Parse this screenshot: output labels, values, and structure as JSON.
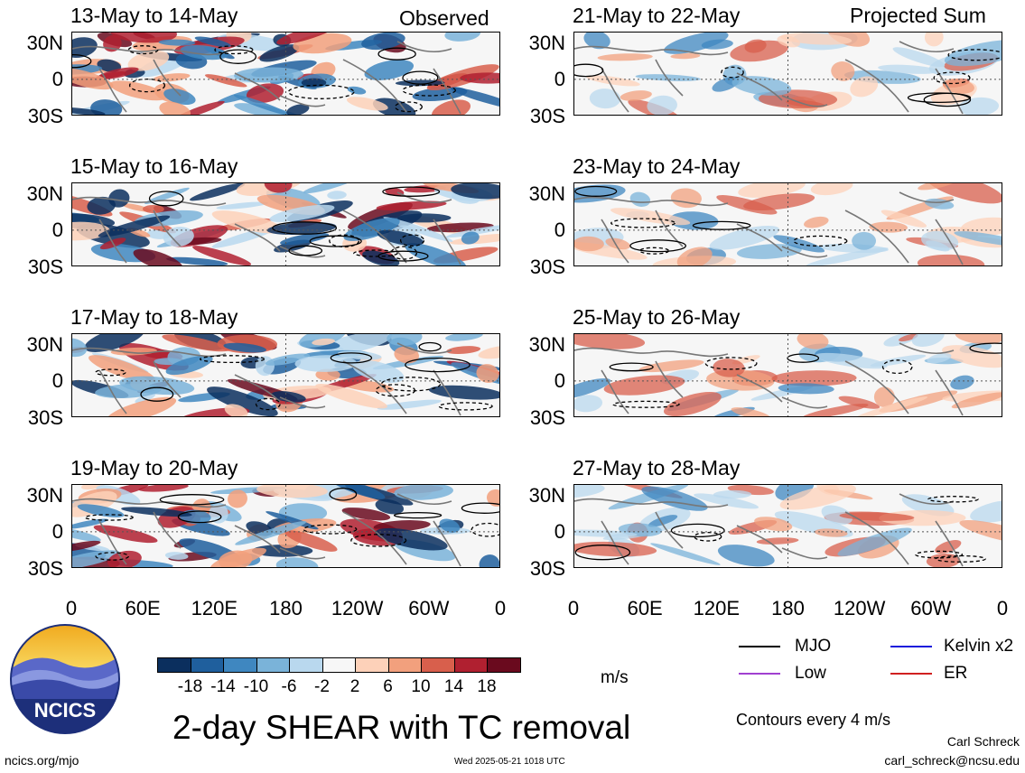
{
  "header": {
    "left_label": "Observed",
    "right_label": "Projected Sum"
  },
  "panels_left": [
    {
      "title": "13-May to 14-May"
    },
    {
      "title": "15-May to 16-May"
    },
    {
      "title": "17-May to 18-May"
    },
    {
      "title": "19-May to 20-May"
    }
  ],
  "panels_right": [
    {
      "title": "21-May to 22-May"
    },
    {
      "title": "23-May to 24-May"
    },
    {
      "title": "25-May to 26-May"
    },
    {
      "title": "27-May to 28-May"
    }
  ],
  "lat_labels": [
    "30N",
    "0",
    "30S"
  ],
  "lon_labels": [
    "0",
    "60E",
    "120E",
    "180",
    "120W",
    "60W",
    "0"
  ],
  "colorbar": {
    "ticks": [
      "-18",
      "-14",
      "-10",
      "-6",
      "-2",
      "2",
      "6",
      "10",
      "14",
      "18"
    ],
    "colors": [
      "#0b2f5e",
      "#1f5f9d",
      "#3f87c0",
      "#7ab3d9",
      "#b9d8ee",
      "#f7f7f7",
      "#fdd1b9",
      "#f2a07d",
      "#d85f4c",
      "#b02030",
      "#6a0a1e"
    ],
    "units": "m/s"
  },
  "legend": [
    {
      "label": "MJO",
      "color": "#000000"
    },
    {
      "label": "Kelvin x2",
      "color": "#1a1adc"
    },
    {
      "label": "Low",
      "color": "#a040d0"
    },
    {
      "label": "ER",
      "color": "#d02020"
    }
  ],
  "contour_note": "Contours every 4 m/s",
  "main_title": "2-day SHEAR with TC removal",
  "logo_text": "NCICS",
  "footer": {
    "url": "ncics.org/mjo",
    "timestamp": "Wed 2025-05-21 1018 UTC",
    "author": "Carl Schreck",
    "email": "carl_schreck@ncsu.edu"
  },
  "chart_data": {
    "type": "heatmap",
    "title": "2-day SHEAR with TC removal",
    "variable": "shear anomaly",
    "units": "m/s",
    "color_levels": [
      -18,
      -14,
      -10,
      -6,
      -2,
      2,
      6,
      10,
      14,
      18
    ],
    "lat_ticks": [
      "30N",
      "0",
      "30S"
    ],
    "lon_ticks": [
      "0",
      "60E",
      "120E",
      "180",
      "120W",
      "60W",
      "0"
    ],
    "panels": [
      {
        "period": "13-May to 14-May",
        "kind": "Observed"
      },
      {
        "period": "15-May to 16-May",
        "kind": "Observed"
      },
      {
        "period": "17-May to 18-May",
        "kind": "Observed"
      },
      {
        "period": "19-May to 20-May",
        "kind": "Observed"
      },
      {
        "period": "21-May to 22-May",
        "kind": "Projected Sum"
      },
      {
        "period": "23-May to 24-May",
        "kind": "Projected Sum"
      },
      {
        "period": "25-May to 26-May",
        "kind": "Projected Sum"
      },
      {
        "period": "27-May to 28-May",
        "kind": "Projected Sum"
      }
    ],
    "contour_interval": "Contours every 4 m/s",
    "contour_series": [
      "MJO",
      "Kelvin x2",
      "Low",
      "ER"
    ]
  }
}
